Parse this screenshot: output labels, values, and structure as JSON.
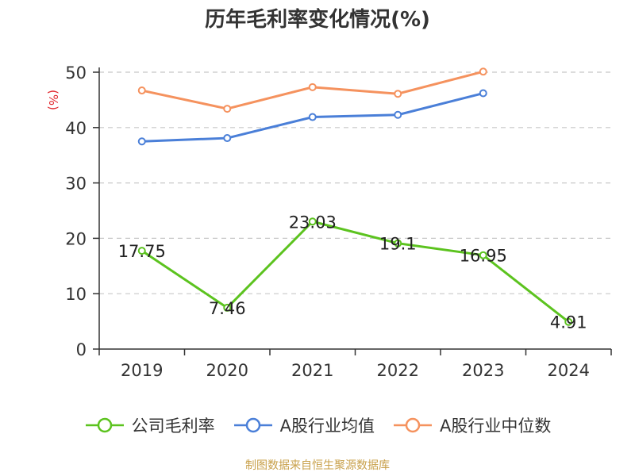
{
  "chart_data": {
    "type": "line",
    "title": "历年毛利率变化情况(%)",
    "ylabel": "(%)",
    "xlabel": "",
    "categories": [
      "2019",
      "2020",
      "2021",
      "2022",
      "2023",
      "2024"
    ],
    "ylim": [
      0,
      50
    ],
    "yticks": [
      0,
      10,
      20,
      30,
      40,
      50
    ],
    "grid": true,
    "legend_position": "bottom",
    "series": [
      {
        "name": "公司毛利率",
        "color": "#5cc31f",
        "values": [
          17.75,
          7.46,
          23.03,
          19.1,
          16.95,
          4.91
        ],
        "show_labels": true
      },
      {
        "name": "A股行业均值",
        "color": "#4a7fd8",
        "values": [
          37.5,
          38.1,
          41.9,
          42.3,
          46.2,
          null
        ],
        "show_labels": false
      },
      {
        "name": "A股行业中位数",
        "color": "#f5925e",
        "values": [
          46.7,
          43.4,
          47.3,
          46.1,
          50.1,
          null
        ],
        "show_labels": false
      }
    ]
  },
  "source_text": "制图数据来自恒生聚源数据库",
  "ylabel_color": "#e0252b",
  "source_color": "#c8a04a"
}
